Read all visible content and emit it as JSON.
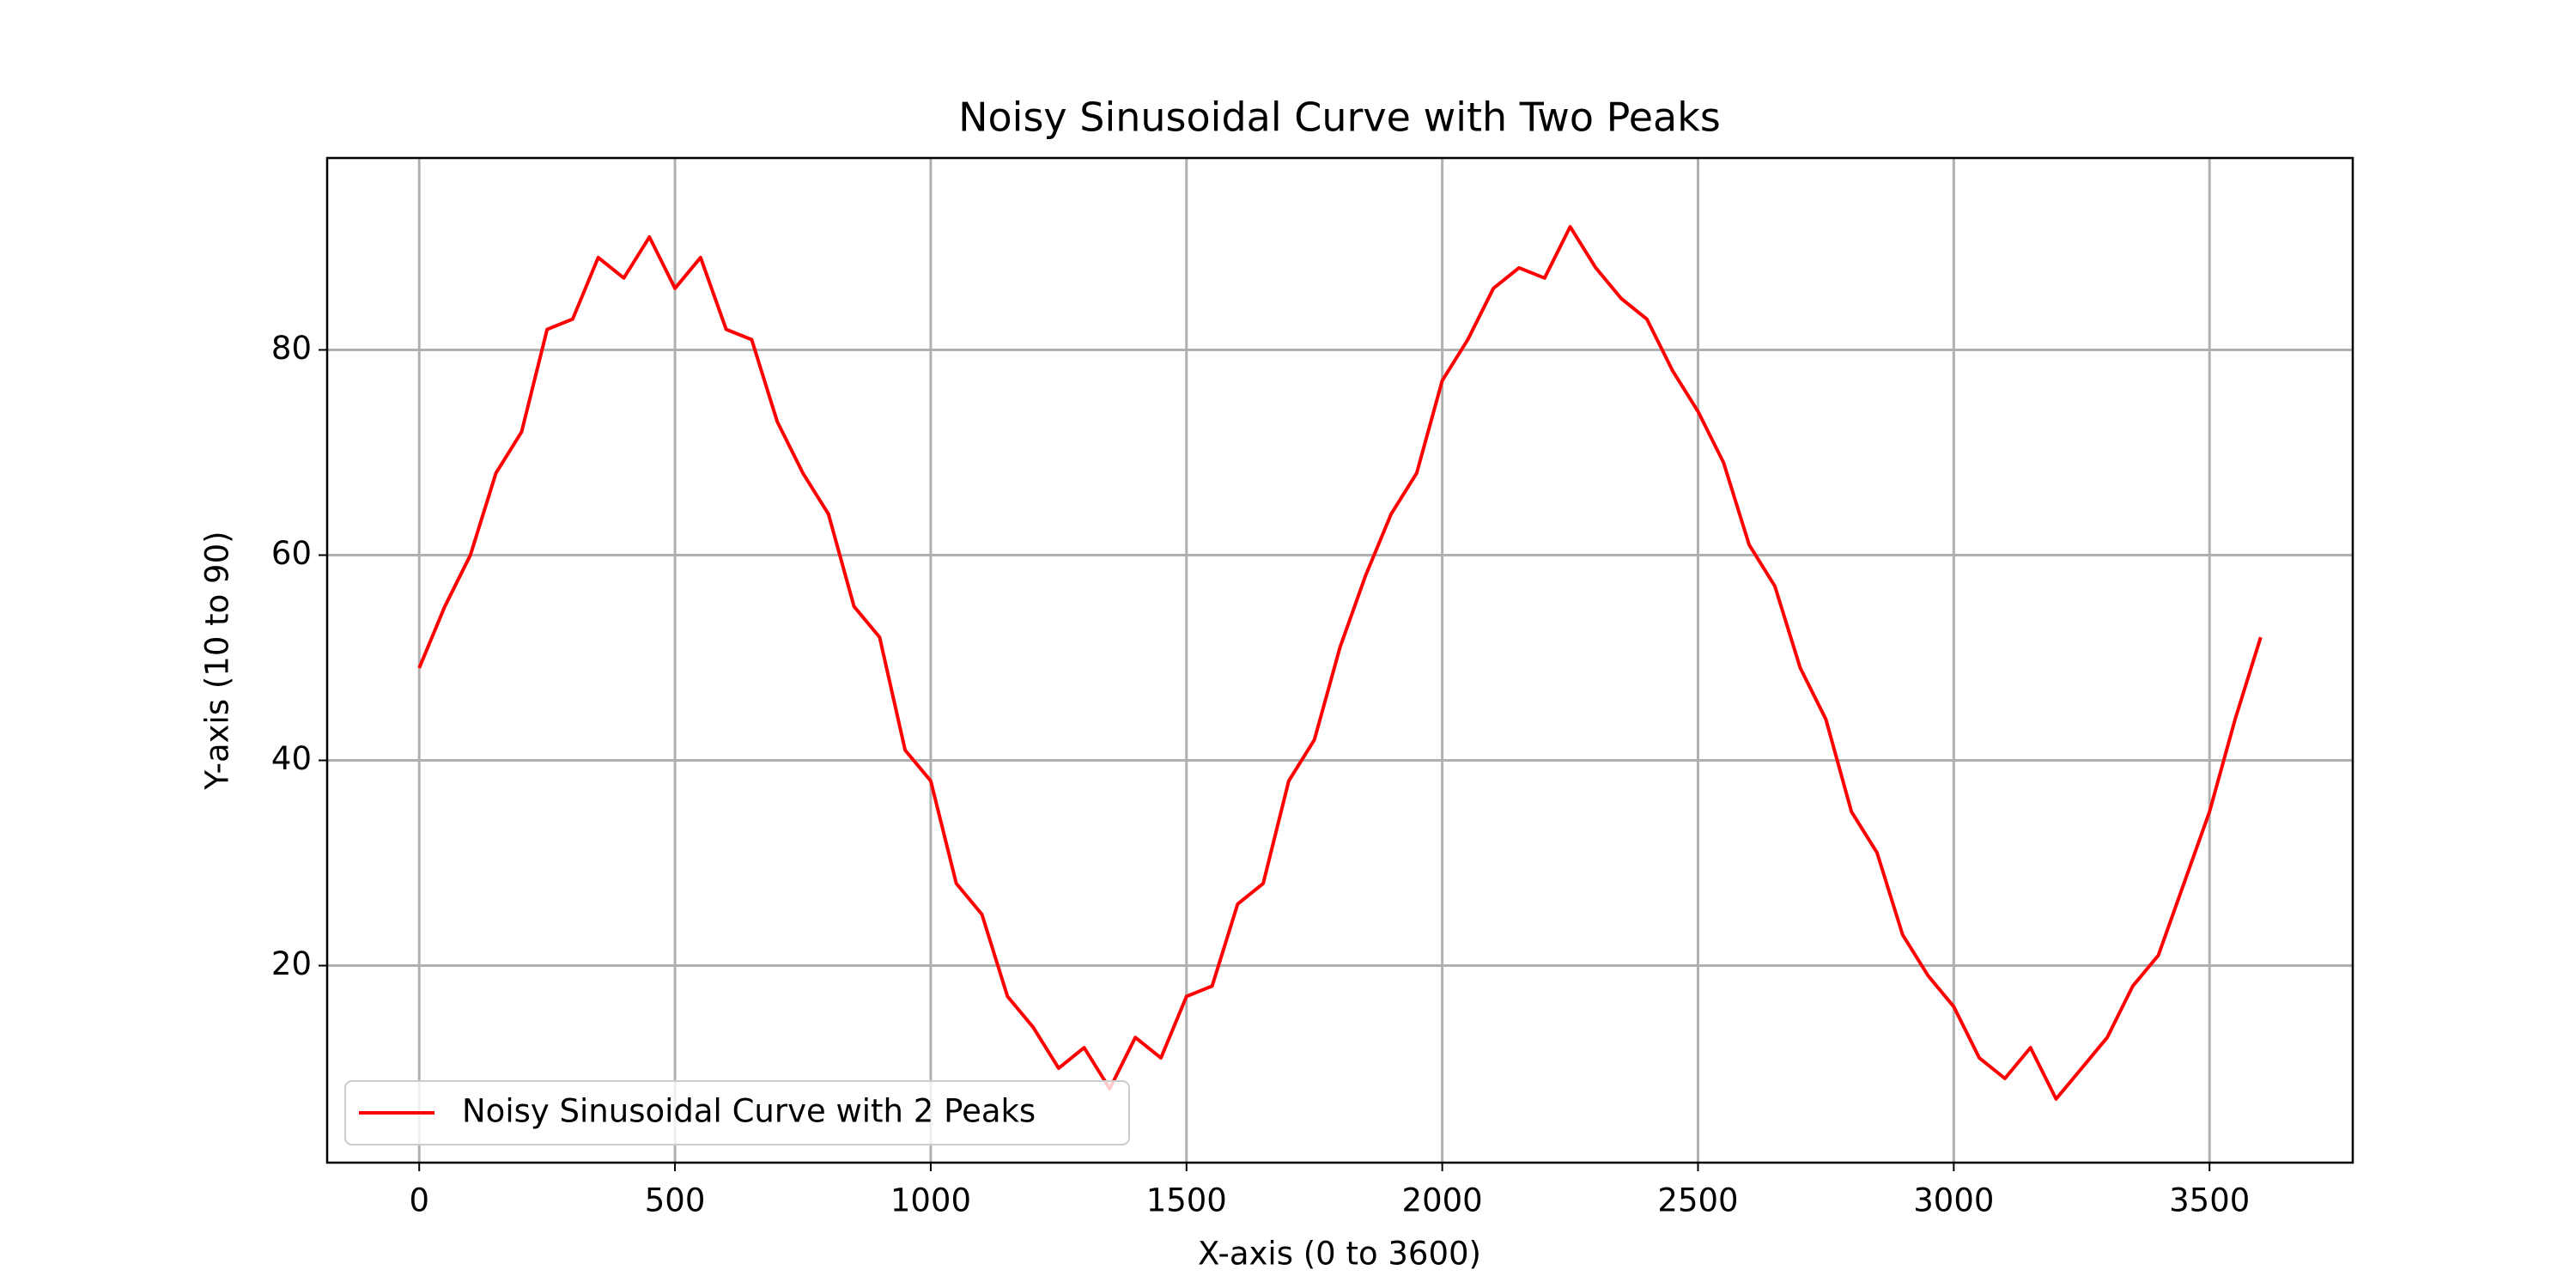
{
  "chart_data": {
    "type": "line",
    "title": "Noisy Sinusoidal Curve with Two Peaks",
    "x_label": "X-axis (0 to 3600)",
    "y_label": "Y-axis (10 to 90)",
    "x": [
      0,
      50,
      100,
      150,
      200,
      250,
      300,
      350,
      400,
      450,
      500,
      550,
      600,
      650,
      700,
      750,
      800,
      850,
      900,
      950,
      1000,
      1050,
      1100,
      1150,
      1200,
      1250,
      1300,
      1350,
      1400,
      1450,
      1500,
      1550,
      1600,
      1650,
      1700,
      1750,
      1800,
      1850,
      1900,
      1950,
      2000,
      2050,
      2100,
      2150,
      2200,
      2250,
      2300,
      2350,
      2400,
      2450,
      2500,
      2550,
      2600,
      2650,
      2700,
      2750,
      2800,
      2850,
      2900,
      2950,
      3000,
      3050,
      3100,
      3150,
      3200,
      3250,
      3300,
      3350,
      3400,
      3450,
      3500,
      3550,
      3600
    ],
    "series": [
      {
        "name": "Noisy Sinusoidal Curve with 2 Peaks",
        "color": "#ff0000",
        "values": [
          49,
          55,
          60,
          68,
          72,
          82,
          83,
          89,
          87,
          91,
          86,
          89,
          82,
          81,
          73,
          68,
          64,
          55,
          52,
          41,
          38,
          28,
          25,
          17,
          14,
          10,
          12,
          8,
          13,
          11,
          17,
          18,
          26,
          28,
          38,
          42,
          51,
          58,
          64,
          68,
          77,
          81,
          86,
          88,
          87,
          92,
          88,
          85,
          83,
          78,
          74,
          69,
          61,
          57,
          49,
          44,
          35,
          31,
          23,
          19,
          16,
          11,
          9,
          12,
          7,
          10,
          13,
          18,
          21,
          28,
          35,
          44,
          52
        ]
      }
    ],
    "xlim": [
      -180,
      3780
    ],
    "ylim": [
      0.8,
      98.7
    ],
    "xticks": [
      0,
      500,
      1000,
      1500,
      2000,
      2500,
      3000,
      3500
    ],
    "yticks": [
      20,
      40,
      60,
      80
    ],
    "grid": true,
    "legend": "lower left"
  }
}
